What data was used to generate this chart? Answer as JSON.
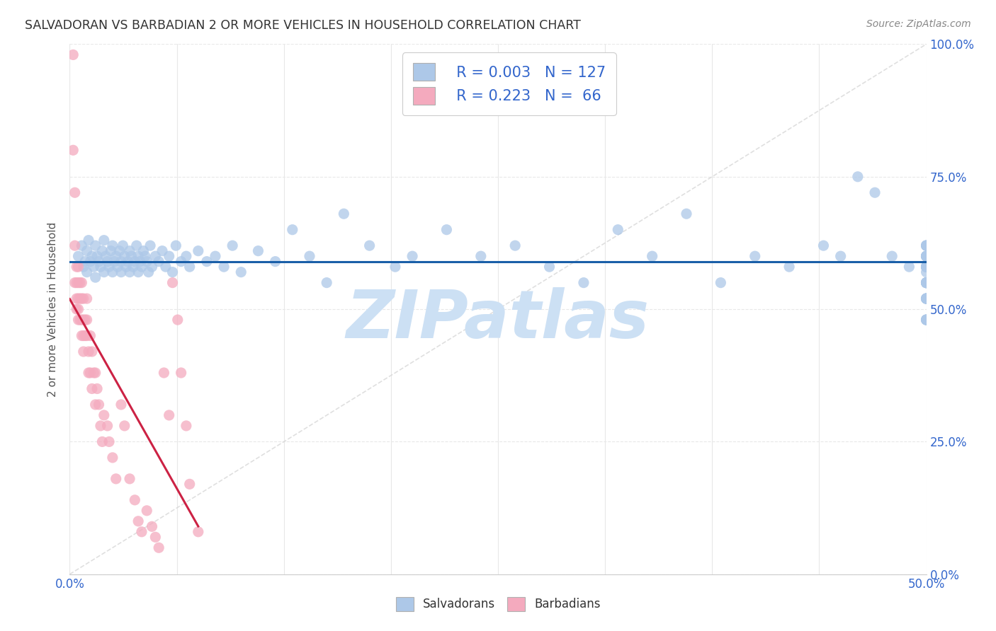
{
  "title": "SALVADORAN VS BARBADIAN 2 OR MORE VEHICLES IN HOUSEHOLD CORRELATION CHART",
  "source": "Source: ZipAtlas.com",
  "ylabel": "2 or more Vehicles in Household",
  "salv_color": "#adc8e8",
  "barb_color": "#f4aabe",
  "salv_line_color": "#1a5fa8",
  "barb_line_color": "#cc2244",
  "diagonal_color": "#d8d8d8",
  "axis_label_color": "#3366cc",
  "grid_color": "#e8e8e8",
  "title_color": "#333333",
  "source_color": "#888888",
  "background_color": "#ffffff",
  "watermark": "ZIPatlas",
  "watermark_color": "#cce0f4",
  "legend_r_salv": "R = 0.003",
  "legend_n_salv": "N = 127",
  "legend_r_barb": "R = 0.223",
  "legend_n_barb": "N =  66",
  "xlim": [
    0,
    0.5
  ],
  "ylim": [
    0,
    1.0
  ],
  "x_ticks": [
    0.0,
    0.0625,
    0.125,
    0.1875,
    0.25,
    0.3125,
    0.375,
    0.4375,
    0.5
  ],
  "y_ticks": [
    0.0,
    0.25,
    0.5,
    0.75,
    1.0
  ],
  "y_tick_labels": [
    "0.0%",
    "25.0%",
    "50.0%",
    "75.0%",
    "100.0%"
  ],
  "salv_x": [
    0.005,
    0.007,
    0.008,
    0.009,
    0.01,
    0.01,
    0.011,
    0.012,
    0.013,
    0.014,
    0.015,
    0.015,
    0.016,
    0.017,
    0.018,
    0.019,
    0.02,
    0.02,
    0.021,
    0.022,
    0.023,
    0.024,
    0.025,
    0.025,
    0.026,
    0.027,
    0.028,
    0.029,
    0.03,
    0.03,
    0.031,
    0.032,
    0.033,
    0.034,
    0.035,
    0.035,
    0.036,
    0.037,
    0.038,
    0.039,
    0.04,
    0.04,
    0.041,
    0.042,
    0.043,
    0.044,
    0.045,
    0.046,
    0.047,
    0.048,
    0.05,
    0.052,
    0.054,
    0.056,
    0.058,
    0.06,
    0.062,
    0.065,
    0.068,
    0.07,
    0.075,
    0.08,
    0.085,
    0.09,
    0.095,
    0.1,
    0.11,
    0.12,
    0.13,
    0.14,
    0.15,
    0.16,
    0.175,
    0.19,
    0.2,
    0.22,
    0.24,
    0.26,
    0.28,
    0.3,
    0.32,
    0.34,
    0.36,
    0.38,
    0.4,
    0.42,
    0.44,
    0.45,
    0.46,
    0.47,
    0.48,
    0.49,
    0.5,
    0.5,
    0.5,
    0.5,
    0.5,
    0.5,
    0.5,
    0.5,
    0.5,
    0.5,
    0.5,
    0.5,
    0.5,
    0.5,
    0.5,
    0.5,
    0.5,
    0.5,
    0.5,
    0.5,
    0.5,
    0.5,
    0.5,
    0.5,
    0.5,
    0.5,
    0.5,
    0.5,
    0.5,
    0.5,
    0.5,
    0.5,
    0.5,
    0.5,
    0.5
  ],
  "salv_y": [
    0.6,
    0.62,
    0.58,
    0.59,
    0.61,
    0.57,
    0.63,
    0.59,
    0.6,
    0.58,
    0.62,
    0.56,
    0.6,
    0.59,
    0.58,
    0.61,
    0.57,
    0.63,
    0.6,
    0.59,
    0.58,
    0.61,
    0.57,
    0.62,
    0.59,
    0.6,
    0.58,
    0.61,
    0.57,
    0.59,
    0.62,
    0.6,
    0.58,
    0.59,
    0.61,
    0.57,
    0.6,
    0.58,
    0.59,
    0.62,
    0.57,
    0.6,
    0.59,
    0.58,
    0.61,
    0.6,
    0.59,
    0.57,
    0.62,
    0.58,
    0.6,
    0.59,
    0.61,
    0.58,
    0.6,
    0.57,
    0.62,
    0.59,
    0.6,
    0.58,
    0.61,
    0.59,
    0.6,
    0.58,
    0.62,
    0.57,
    0.61,
    0.59,
    0.65,
    0.6,
    0.55,
    0.68,
    0.62,
    0.58,
    0.6,
    0.65,
    0.6,
    0.62,
    0.58,
    0.55,
    0.65,
    0.6,
    0.68,
    0.55,
    0.6,
    0.58,
    0.62,
    0.6,
    0.75,
    0.72,
    0.6,
    0.58,
    0.57,
    0.55,
    0.6,
    0.62,
    0.58,
    0.52,
    0.6,
    0.55,
    0.58,
    0.48,
    0.62,
    0.58,
    0.55,
    0.6,
    0.52,
    0.58,
    0.48,
    0.55,
    0.62,
    0.58,
    0.6,
    0.52,
    0.48,
    0.55,
    0.58,
    0.6,
    0.62,
    0.52,
    0.55,
    0.58,
    0.48,
    0.6,
    0.55,
    0.52,
    0.58
  ],
  "barb_x": [
    0.002,
    0.002,
    0.003,
    0.003,
    0.003,
    0.004,
    0.004,
    0.004,
    0.004,
    0.005,
    0.005,
    0.005,
    0.005,
    0.005,
    0.006,
    0.006,
    0.006,
    0.007,
    0.007,
    0.007,
    0.007,
    0.008,
    0.008,
    0.008,
    0.008,
    0.009,
    0.009,
    0.01,
    0.01,
    0.01,
    0.011,
    0.011,
    0.012,
    0.012,
    0.013,
    0.013,
    0.014,
    0.015,
    0.015,
    0.016,
    0.017,
    0.018,
    0.019,
    0.02,
    0.022,
    0.023,
    0.025,
    0.027,
    0.03,
    0.032,
    0.035,
    0.038,
    0.04,
    0.042,
    0.045,
    0.048,
    0.05,
    0.052,
    0.055,
    0.058,
    0.06,
    0.063,
    0.065,
    0.068,
    0.07,
    0.075
  ],
  "barb_y": [
    0.98,
    0.8,
    0.72,
    0.62,
    0.55,
    0.58,
    0.55,
    0.52,
    0.5,
    0.58,
    0.55,
    0.52,
    0.5,
    0.48,
    0.55,
    0.52,
    0.48,
    0.55,
    0.52,
    0.48,
    0.45,
    0.52,
    0.48,
    0.45,
    0.42,
    0.48,
    0.45,
    0.52,
    0.48,
    0.45,
    0.42,
    0.38,
    0.45,
    0.38,
    0.42,
    0.35,
    0.38,
    0.38,
    0.32,
    0.35,
    0.32,
    0.28,
    0.25,
    0.3,
    0.28,
    0.25,
    0.22,
    0.18,
    0.32,
    0.28,
    0.18,
    0.14,
    0.1,
    0.08,
    0.12,
    0.09,
    0.07,
    0.05,
    0.38,
    0.3,
    0.55,
    0.48,
    0.38,
    0.28,
    0.17,
    0.08
  ]
}
